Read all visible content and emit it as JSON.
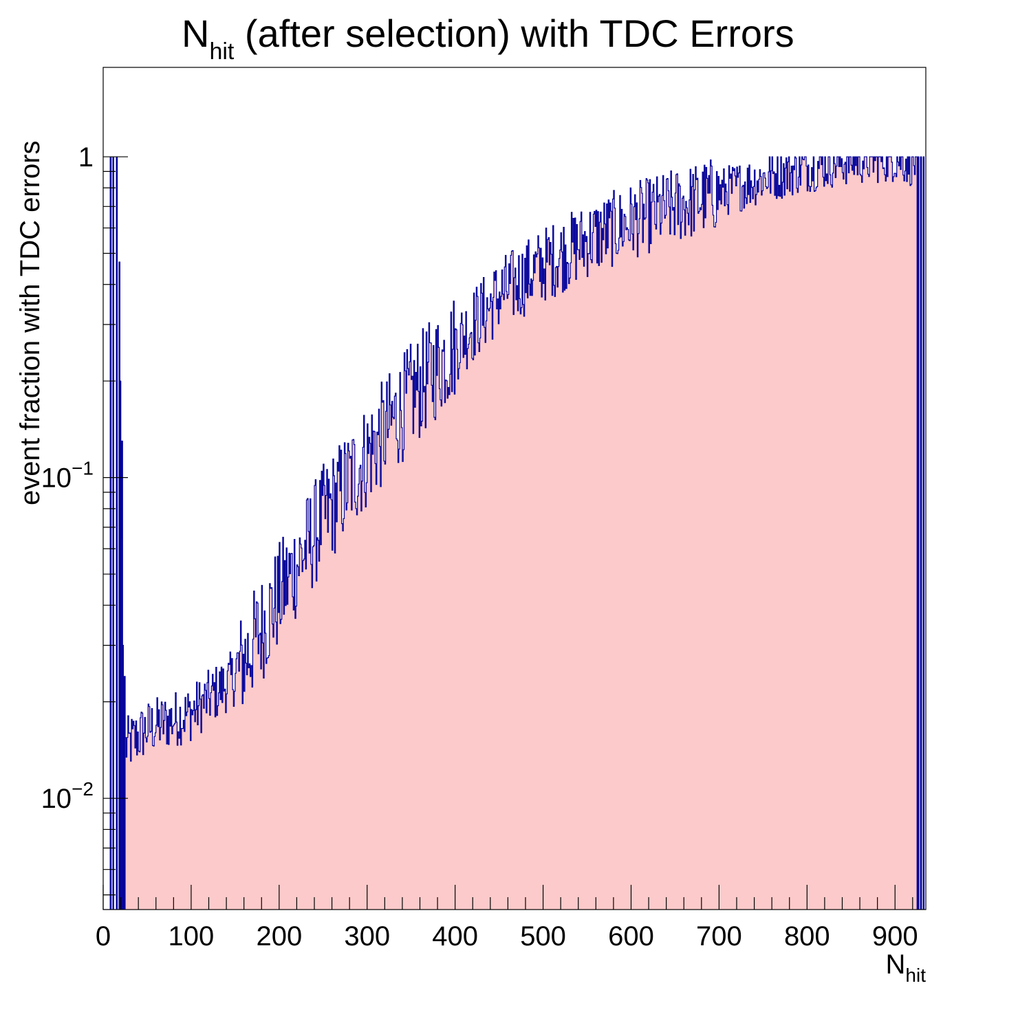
{
  "chart_data": {
    "type": "histogram",
    "title": {
      "main": "N",
      "sub": "hit",
      "rest": " (after selection) with TDC Errors"
    },
    "xlabel": {
      "main": "N",
      "sub": "hit"
    },
    "ylabel": "event fraction with TDC errors",
    "x_range": [
      0,
      935
    ],
    "y_range": [
      0.0045,
      1.9
    ],
    "y_scale": "log",
    "grid": false,
    "x_ticks": [
      0,
      100,
      200,
      300,
      400,
      500,
      600,
      700,
      800,
      900
    ],
    "y_ticks": [
      {
        "value": 1,
        "label": "1"
      },
      {
        "value": 0.1,
        "mantissa": "10",
        "exponent": "−1"
      },
      {
        "value": 0.01,
        "mantissa": "10",
        "exponent": "−2"
      }
    ],
    "anomalies": [
      {
        "x": 8,
        "y": 1.0
      },
      {
        "x": 11,
        "y": 1.0
      },
      {
        "x": 15,
        "y": 1.0
      },
      {
        "x": 18,
        "y": 0.47
      },
      {
        "x": 19,
        "y": 0.2
      },
      {
        "x": 20,
        "y": 0.065
      },
      {
        "x": 21,
        "y": 0.13
      },
      {
        "x": 22,
        "y": 0.03
      },
      {
        "x": 23,
        "y": 0.008
      },
      {
        "x": 24,
        "y": 0.024
      },
      {
        "x": 926,
        "y": 1.0
      },
      {
        "x": 929,
        "y": 1.0
      },
      {
        "x": 932,
        "y": 1.0
      }
    ],
    "trend_points": [
      [
        25,
        0.0145
      ],
      [
        50,
        0.0165
      ],
      [
        100,
        0.0185
      ],
      [
        150,
        0.024
      ],
      [
        200,
        0.043
      ],
      [
        250,
        0.075
      ],
      [
        300,
        0.118
      ],
      [
        350,
        0.18
      ],
      [
        400,
        0.26
      ],
      [
        450,
        0.37
      ],
      [
        500,
        0.46
      ],
      [
        550,
        0.55
      ],
      [
        600,
        0.63
      ],
      [
        650,
        0.7
      ],
      [
        700,
        0.77
      ],
      [
        750,
        0.86
      ],
      [
        800,
        0.93
      ],
      [
        850,
        0.98
      ],
      [
        900,
        1.0
      ],
      [
        925,
        0.96
      ]
    ],
    "fill_color": "#fccaca",
    "line_color": "#000099"
  }
}
